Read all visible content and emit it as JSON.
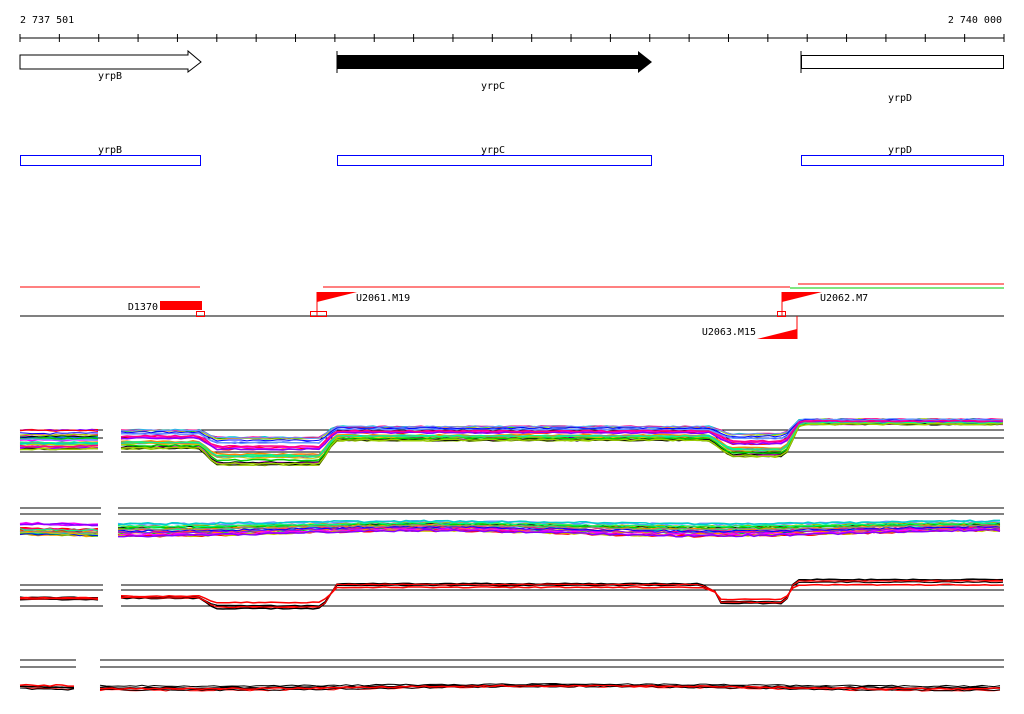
{
  "axis": {
    "start_label": "2 737 501",
    "end_label": "2 740 000",
    "tick_count": 25
  },
  "genes": [
    {
      "name": "yrpB",
      "strand": "+",
      "fill": "#ffffff"
    },
    {
      "name": "yrpC",
      "strand": "+",
      "fill": "#000000"
    },
    {
      "name": "yrpD",
      "strand": "+",
      "fill": "#ffffff"
    }
  ],
  "annotations": [
    {
      "name": "yrpB",
      "color": "#0000ff"
    },
    {
      "name": "yrpC",
      "color": "#0000ff"
    },
    {
      "name": "yrpD",
      "color": "#0000ff"
    }
  ],
  "features": [
    {
      "label": "D1370",
      "color": "#ff0000"
    },
    {
      "label": "U2061.M19",
      "color": "#ff0000"
    },
    {
      "label": "U2062.M7",
      "color": "#ff0000"
    },
    {
      "label": "U2063.M15",
      "color": "#ff0000"
    }
  ],
  "colors": {
    "feature": "#ff0000",
    "secondary_line": "#00cc00",
    "gene_outline": "#000000"
  }
}
